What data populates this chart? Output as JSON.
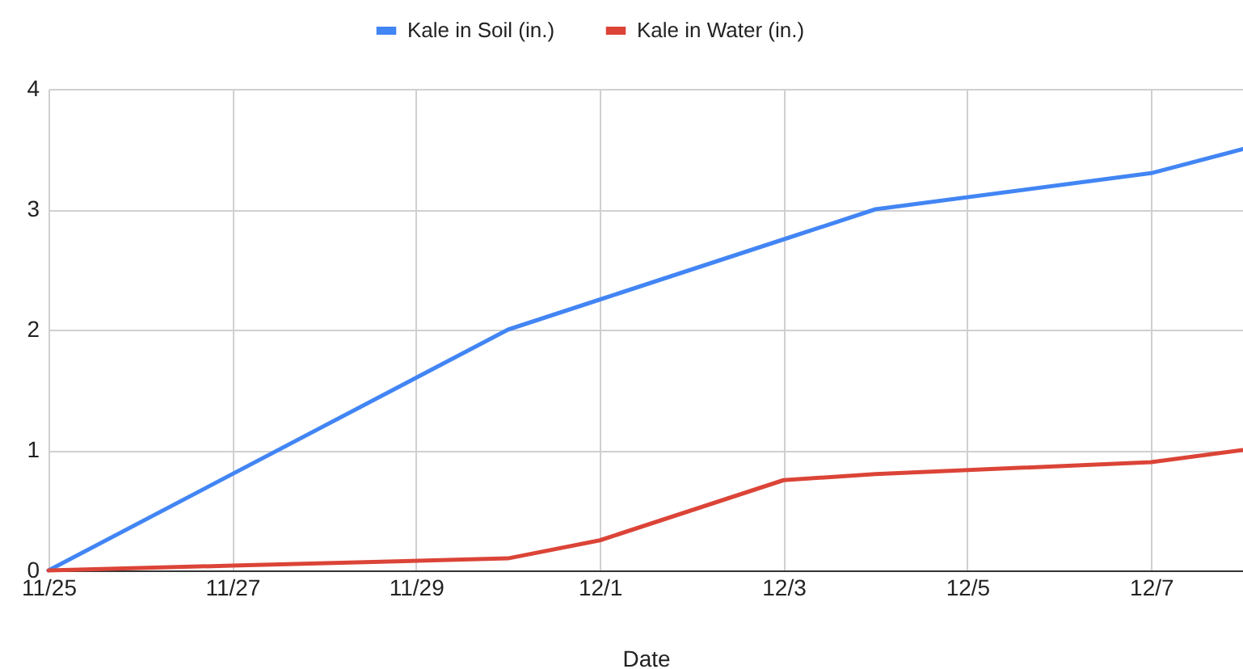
{
  "chart_data": {
    "type": "line",
    "xlabel": "Date",
    "series": [
      {
        "name": "Kale in Soil (in.)",
        "color": "#4285f4",
        "x": [
          "--11-25",
          "--11-30",
          "--12-01",
          "--12-03",
          "--12-04",
          "--12-07",
          "--12-08"
        ],
        "values": [
          0,
          2.0,
          2.25,
          2.75,
          3.0,
          3.3,
          3.5
        ]
      },
      {
        "name": "Kale in Water (in.)",
        "color": "#db4437",
        "x": [
          "--11-25",
          "--11-27",
          "--11-30",
          "--12-01",
          "--12-03",
          "--12-04",
          "--12-07",
          "--12-08"
        ],
        "values": [
          0,
          0.04,
          0.1,
          0.25,
          0.75,
          0.8,
          0.9,
          1.0
        ]
      }
    ],
    "xlim": [
      "--11-25",
      "--12-08"
    ],
    "xticks": [
      {
        "value": "--11-25",
        "label": "11/25"
      },
      {
        "value": "--11-27",
        "label": "11/27"
      },
      {
        "value": "--11-29",
        "label": "11/29"
      },
      {
        "value": "--12-01",
        "label": "12/1"
      },
      {
        "value": "--12-03",
        "label": "12/3"
      },
      {
        "value": "--12-05",
        "label": "12/5"
      },
      {
        "value": "--12-07",
        "label": "12/7"
      }
    ],
    "ylim": [
      0,
      4
    ],
    "yticks": [
      0,
      1,
      2,
      3,
      4
    ],
    "grid": true,
    "legend": "top",
    "marker": "none",
    "line_style": "solid"
  }
}
